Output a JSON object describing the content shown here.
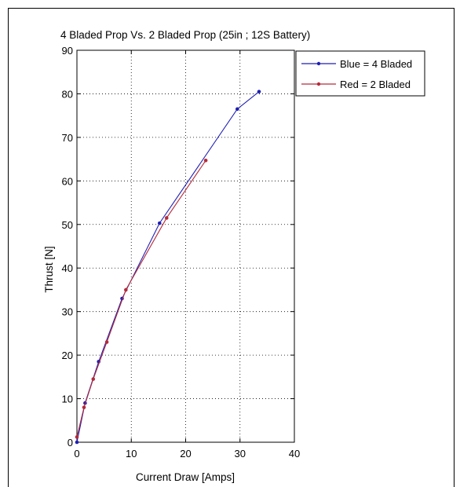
{
  "chart_data": {
    "type": "line",
    "title": "4 Bladed Prop Vs. 2 Bladed Prop (25in ; 12S Battery)",
    "xlabel": "Current Draw [Amps]",
    "ylabel": "Thrust [N]",
    "xlim": [
      0,
      40
    ],
    "ylim": [
      0,
      90
    ],
    "xticks": [
      0,
      10,
      20,
      30,
      40
    ],
    "yticks": [
      0,
      10,
      20,
      30,
      40,
      50,
      60,
      70,
      80,
      90
    ],
    "grid": "dotted",
    "legend_position": "outside-top-right",
    "series": [
      {
        "name": "Blue = 4 Bladed",
        "color": "#1f1fb4",
        "x": [
          0,
          1.5,
          4,
          8.3,
          15.2,
          29.5,
          33.5
        ],
        "y": [
          0,
          9,
          18.5,
          33,
          50.3,
          76.5,
          80.5
        ]
      },
      {
        "name": "Red = 2 Bladed",
        "color": "#b42a3a",
        "x": [
          0,
          1.3,
          3,
          5.5,
          9,
          16.5,
          23.7
        ],
        "y": [
          1.2,
          8,
          14.5,
          23,
          35,
          51.5,
          64.7
        ]
      }
    ]
  }
}
